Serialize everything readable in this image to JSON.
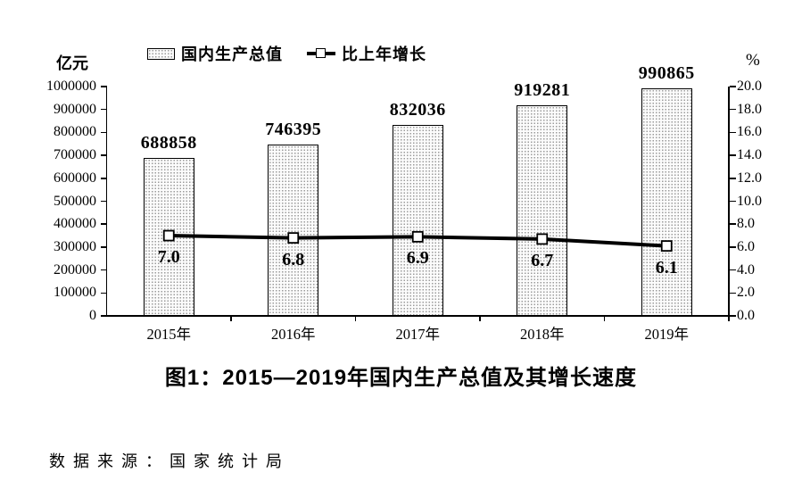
{
  "chart_data": {
    "type": "combo",
    "categories": [
      "2015年",
      "2016年",
      "2017年",
      "2018年",
      "2019年"
    ],
    "series": [
      {
        "name": "国内生产总值",
        "type": "bar",
        "unit": "亿元",
        "axis": "left",
        "values": [
          688858,
          746395,
          832036,
          919281,
          990865
        ]
      },
      {
        "name": "比上年增长",
        "type": "line",
        "unit": "%",
        "axis": "right",
        "values": [
          7.0,
          6.8,
          6.9,
          6.7,
          6.1
        ]
      }
    ],
    "left_axis": {
      "label": "亿元",
      "min": 0,
      "max": 1000000,
      "step": 100000
    },
    "right_axis": {
      "label": "%",
      "min": 0,
      "max": 20,
      "step": 2,
      "decimals": 1
    },
    "title": "图1：2015—2019年国内生产总值及其增长速度",
    "legend_position": "top",
    "grid": false
  },
  "source_note": "数据来源：国家统计局",
  "colors": {
    "background": "#ffffff",
    "text": "#000000",
    "axis": "#000000",
    "bar_border": "#000000",
    "bar_fill_base": "#fcfcfc",
    "bar_fill_dots": "#9a9a9a",
    "line": "#000000",
    "marker_fill": "#ffffff",
    "marker_border": "#000000"
  }
}
